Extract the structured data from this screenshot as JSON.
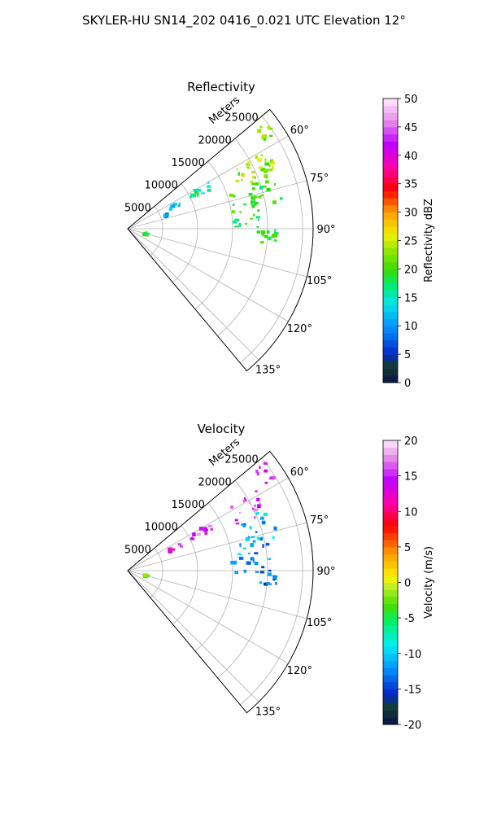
{
  "title": "SKYLER-HU  SN14_202  0416_0.021 UTC Elevation 12°",
  "chart_data": [
    {
      "type": "polar-sector",
      "title": "Reflectivity",
      "radial_label": "Meters",
      "radial_ticks": [
        "5000",
        "10000",
        "15000",
        "20000",
        "25000"
      ],
      "radial_values": [
        5000,
        10000,
        15000,
        20000,
        25000
      ],
      "rmax": 26500,
      "azimuth_range_deg": [
        50,
        140
      ],
      "angle_ticks": [
        "60°",
        "75°",
        "90°",
        "105°",
        "120°",
        "135°"
      ],
      "angle_values": [
        60,
        75,
        90,
        105,
        120,
        135
      ],
      "colorbar": {
        "label": "Reflectivity dBZ",
        "ticks": [
          "0",
          "5",
          "10",
          "15",
          "20",
          "25",
          "30",
          "35",
          "40",
          "45",
          "50"
        ],
        "range": [
          0,
          50
        ],
        "colormap": "pyart_HomeyerRainbow"
      },
      "echo_regions": [
        {
          "az": [
            52,
            58
          ],
          "r": [
            23000,
            25000
          ],
          "value": 22
        },
        {
          "az": [
            58,
            72
          ],
          "r": [
            17000,
            23000
          ],
          "value": 24
        },
        {
          "az": [
            62,
            80
          ],
          "r": [
            17000,
            22500
          ],
          "value": 21
        },
        {
          "az": [
            72,
            92
          ],
          "r": [
            15000,
            20500
          ],
          "value": 19
        },
        {
          "az": [
            90,
            96
          ],
          "r": [
            19000,
            21500
          ],
          "value": 20
        },
        {
          "az": [
            60,
            66
          ],
          "r": [
            10000,
            13500
          ],
          "value": 17
        },
        {
          "az": [
            62,
            66
          ],
          "r": [
            6500,
            8500
          ],
          "value": 12
        },
        {
          "az": [
            70,
            72
          ],
          "r": [
            5500,
            6000
          ],
          "value": 10
        },
        {
          "az": [
            100,
            110
          ],
          "r": [
            2500,
            3000
          ],
          "value": 19
        }
      ]
    },
    {
      "type": "polar-sector",
      "title": "Velocity",
      "radial_label": "Meters",
      "radial_ticks": [
        "5000",
        "10000",
        "15000",
        "20000",
        "25000"
      ],
      "radial_values": [
        5000,
        10000,
        15000,
        20000,
        25000
      ],
      "rmax": 26500,
      "azimuth_range_deg": [
        50,
        140
      ],
      "angle_ticks": [
        "60°",
        "75°",
        "90°",
        "105°",
        "120°",
        "135°"
      ],
      "angle_values": [
        60,
        75,
        90,
        105,
        120,
        135
      ],
      "colorbar": {
        "label": "Velocity (m/s)",
        "ticks": [
          "-20",
          "-15",
          "-10",
          "-5",
          "0",
          "5",
          "10",
          "15",
          "20"
        ],
        "range": [
          -20,
          20
        ],
        "colormap": "pyart_BuDRd18"
      },
      "echo_regions": [
        {
          "az": [
            52,
            58
          ],
          "r": [
            23000,
            25000
          ],
          "value": 14
        },
        {
          "az": [
            58,
            68
          ],
          "r": [
            17000,
            22000
          ],
          "value": 16
        },
        {
          "az": [
            66,
            78
          ],
          "r": [
            17000,
            22500
          ],
          "value": -11
        },
        {
          "az": [
            76,
            92
          ],
          "r": [
            15000,
            20500
          ],
          "value": -12
        },
        {
          "az": [
            90,
            96
          ],
          "r": [
            19000,
            21500
          ],
          "value": -13
        },
        {
          "az": [
            60,
            66
          ],
          "r": [
            10000,
            13500
          ],
          "value": 15
        },
        {
          "az": [
            62,
            66
          ],
          "r": [
            6500,
            8500
          ],
          "value": 14
        },
        {
          "az": [
            100,
            110
          ],
          "r": [
            2500,
            3000
          ],
          "value": -4
        }
      ]
    }
  ]
}
